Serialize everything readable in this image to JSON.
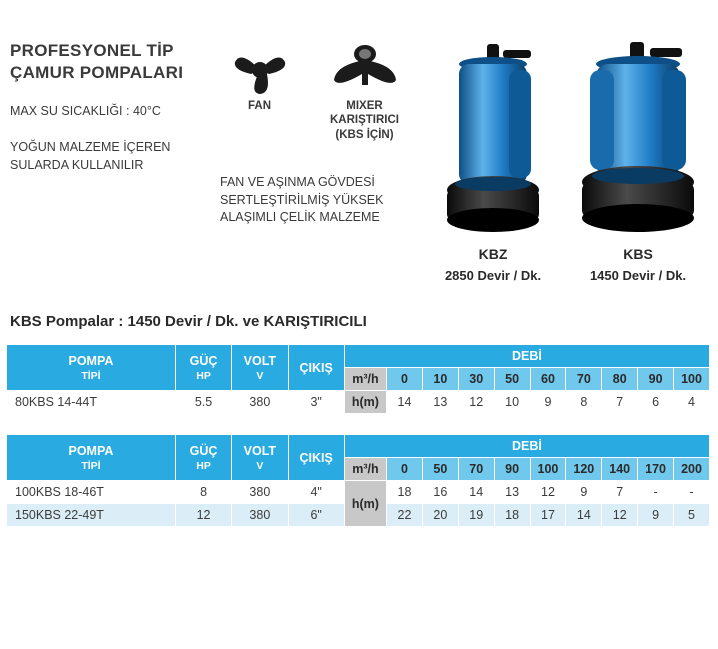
{
  "header": {
    "title_line1": "PROFESYONEL TİP",
    "title_line2": "ÇAMUR POMPALARI",
    "max_temp": "MAX SU SICAKLIĞI :  40°C",
    "usage": "YOĞUN MALZEME İÇEREN SULARDA KULLANILIR"
  },
  "icons": {
    "fan_label": "FAN",
    "mixer_label_l1": "MIXER",
    "mixer_label_l2": "KARIŞTIRICI",
    "mixer_label_l3": "(KBS İÇİN)"
  },
  "material_note": "FAN VE AŞINMA GÖVDESİ SERTLEŞTİRİLMİŞ YÜKSEK ALAŞIMLI ÇELİK MALZEME",
  "pumps": {
    "kbz": {
      "name": "KBZ",
      "sub": "2850 Devir / Dk."
    },
    "kbs": {
      "name": "KBS",
      "sub": "1450 Devir / Dk."
    }
  },
  "section_title": "KBS Pompalar : 1450 Devir / Dk. ve KARIŞTIRICILI",
  "table_common": {
    "col_model_l1": "POMPA",
    "col_model_l2": "TİPİ",
    "col_power_l1": "GÜÇ",
    "col_power_l2": "HP",
    "col_volt_l1": "VOLT",
    "col_volt_l2": "V",
    "col_outlet": "ÇIKIŞ",
    "col_flow": "DEBİ",
    "unit_m3h": "m³/h",
    "unit_hm": "h(m)"
  },
  "table1": {
    "flow_headers": [
      "0",
      "10",
      "30",
      "50",
      "60",
      "70",
      "80",
      "90",
      "100"
    ],
    "rows": [
      {
        "model": "80KBS 14-44T",
        "hp": "5.5",
        "volt": "380",
        "outlet": "3\"",
        "hm": [
          "14",
          "13",
          "12",
          "10",
          "9",
          "8",
          "7",
          "6",
          "4"
        ]
      }
    ]
  },
  "table2": {
    "flow_headers": [
      "0",
      "50",
      "70",
      "90",
      "100",
      "120",
      "140",
      "170",
      "200"
    ],
    "rows": [
      {
        "model": "100KBS 18-46T",
        "hp": "8",
        "volt": "380",
        "outlet": "4\"",
        "hm": [
          "18",
          "16",
          "14",
          "13",
          "12",
          "9",
          "7",
          "-",
          "-"
        ]
      },
      {
        "model": "150KBS 22-49T",
        "hp": "12",
        "volt": "380",
        "outlet": "6\"",
        "hm": [
          "22",
          "20",
          "19",
          "18",
          "17",
          "14",
          "12",
          "9",
          "5"
        ]
      }
    ]
  },
  "styling": {
    "header_bg": "#29abe2",
    "subheader_bg": "#70c8ec",
    "unit_bg": "#c8c8c8",
    "row_alt_bg": "#dbeef8",
    "header_fg": "#ffffff",
    "text_fg": "#3a3a3a",
    "pump_body_color": "#1f7cc5",
    "pump_body_hilite": "#5fb2ea",
    "pump_base_color": "#222222",
    "col_widths_pct": {
      "model": 24,
      "hp": 8,
      "volt": 8,
      "outlet": 8,
      "unit": 6,
      "flow_each": 5.1
    },
    "font_sizes_pt": {
      "title": 13,
      "body": 9.5,
      "table": 9.5,
      "section": 11.5
    },
    "table_border_color": "#ffffff"
  }
}
